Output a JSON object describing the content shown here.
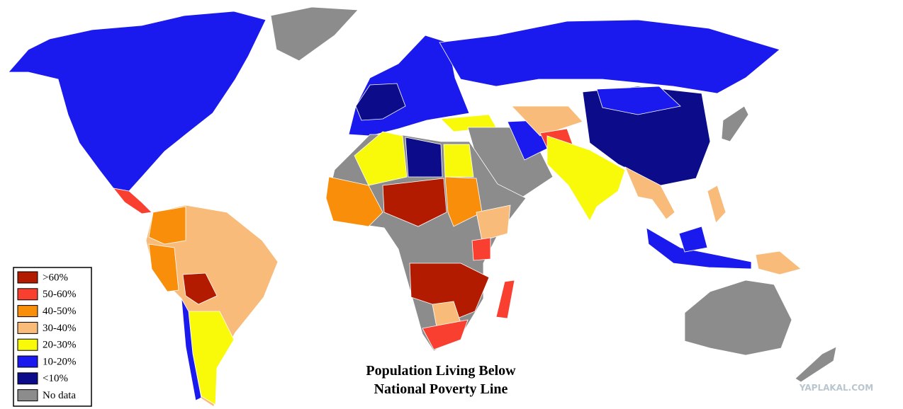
{
  "title": [
    "Population Living Below",
    "National Poverty Line"
  ],
  "legend": [
    {
      "label": ">60%",
      "color": "#b31b00"
    },
    {
      "label": "50-60%",
      "color": "#f93f2f"
    },
    {
      "label": "40-50%",
      "color": "#f98e0a"
    },
    {
      "label": "30-40%",
      "color": "#f9bb7a"
    },
    {
      "label": "20-30%",
      "color": "#f9f90a"
    },
    {
      "label": "10-20%",
      "color": "#1a1aee"
    },
    {
      "label": "<10%",
      "color": "#0c0c8a"
    },
    {
      "label": "No data",
      "color": "#8c8c8c"
    }
  ],
  "watermark": "YAPLAKAL.COM"
}
